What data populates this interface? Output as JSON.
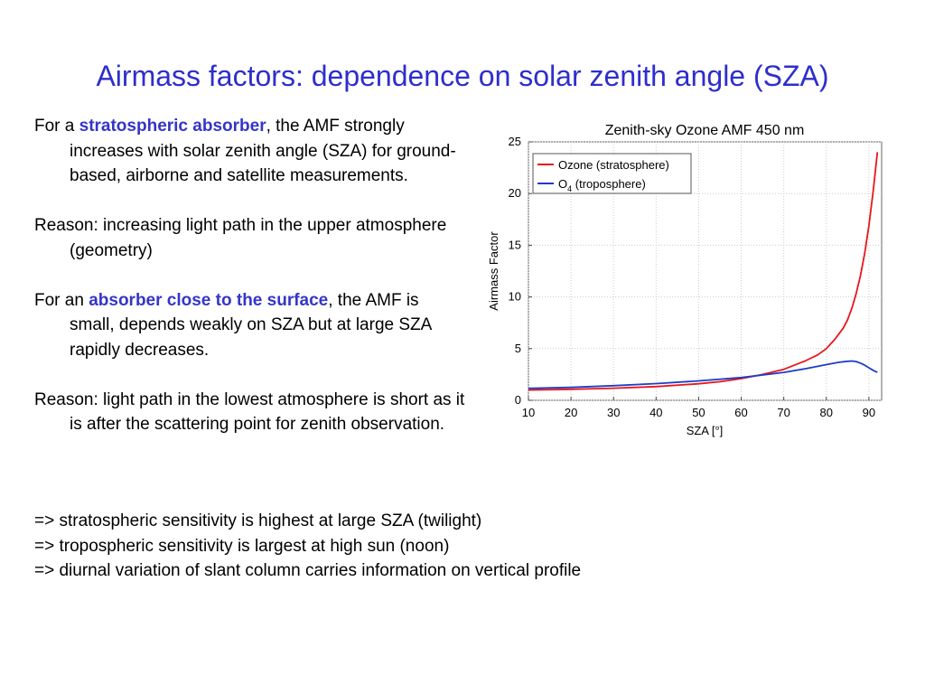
{
  "slide": {
    "title": "Airmass factors: dependence on solar zenith angle (SZA)",
    "paragraphs": [
      {
        "pre": "For a ",
        "highlight": "stratospheric absorber",
        "post": ", the AMF strongly increases with solar zenith angle (SZA) for ground-based, airborne and satellite measurements."
      },
      {
        "pre": "Reason: increasing light path in the upper atmosphere (geometry)",
        "highlight": "",
        "post": ""
      },
      {
        "pre": "For an ",
        "highlight": "absorber close to the surface",
        "post": ", the AMF is small, depends weakly on SZA but at large SZA rapidly decreases."
      },
      {
        "pre": "Reason: light path in the lowest atmosphere is short as it is after the scattering point for zenith observation.",
        "highlight": "",
        "post": ""
      }
    ],
    "conclusions": [
      "=> stratospheric sensitivity is highest at large SZA (twilight)",
      "=> tropospheric sensitivity is largest at high sun (noon)",
      "=> diurnal variation of slant column carries information on vertical profile"
    ],
    "highlight_color": "#3535c8",
    "title_color": "#2e2ecc"
  },
  "chart_data": {
    "type": "line",
    "title": "Zenith-sky Ozone AMF 450 nm",
    "xlabel": "SZA [°]",
    "ylabel": "Airmass Factor",
    "xlim": [
      10,
      93
    ],
    "ylim": [
      0,
      25
    ],
    "xticks": [
      10,
      20,
      30,
      40,
      50,
      60,
      70,
      80,
      90
    ],
    "yticks": [
      0,
      5,
      10,
      15,
      20,
      25
    ],
    "legend_position": "top-left",
    "series": [
      {
        "name": "Ozone (stratosphere)",
        "name_main": "Ozone (stratosphere)",
        "name_sub": "",
        "name_tail": "",
        "color": "#e8161b",
        "x": [
          10,
          20,
          30,
          40,
          50,
          55,
          60,
          65,
          70,
          75,
          78,
          80,
          82,
          84,
          85,
          86,
          87,
          88,
          89,
          90,
          91,
          92
        ],
        "y": [
          1.0,
          1.07,
          1.17,
          1.33,
          1.6,
          1.8,
          2.1,
          2.5,
          3.0,
          3.8,
          4.4,
          5.0,
          5.9,
          7.0,
          7.8,
          8.9,
          10.3,
          12.0,
          14.2,
          16.9,
          20.2,
          24.0
        ]
      },
      {
        "name": "O4 (troposphere)",
        "name_main": "O",
        "name_sub": "4",
        "name_tail": " (troposphere)",
        "color": "#1f3cc8",
        "x": [
          10,
          20,
          30,
          40,
          50,
          60,
          70,
          75,
          80,
          83,
          85,
          86,
          87,
          88,
          89,
          90,
          91,
          92
        ],
        "y": [
          1.15,
          1.25,
          1.42,
          1.62,
          1.88,
          2.2,
          2.7,
          3.05,
          3.45,
          3.68,
          3.78,
          3.8,
          3.75,
          3.6,
          3.4,
          3.15,
          2.9,
          2.7
        ]
      }
    ]
  }
}
